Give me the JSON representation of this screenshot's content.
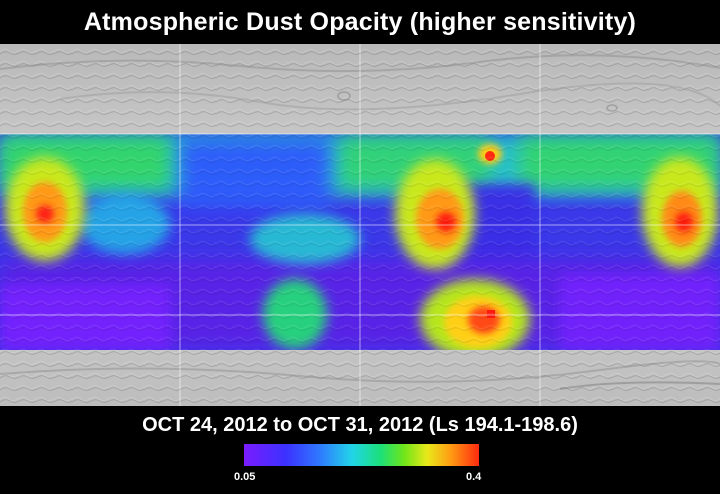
{
  "title": "Atmospheric Dust Opacity (higher sensitivity)",
  "date_range": "OCT 24, 2012 to OCT 31, 2012 (Ls 194.1-198.6)",
  "colorbar": {
    "min_label": "0.05",
    "max_label": "0.4",
    "colors": [
      "#7a1cff",
      "#3b32ff",
      "#2f78ff",
      "#22d5e8",
      "#1be07a",
      "#6ee51a",
      "#e8e81a",
      "#ff9b12",
      "#ff2a10"
    ]
  },
  "map": {
    "basemap": "grayscale-shaded-relief",
    "dust_hotspots": [
      {
        "name": "west-high",
        "intensity": 0.93
      },
      {
        "name": "central-high",
        "intensity": 0.96
      },
      {
        "name": "east-high",
        "intensity": 0.95
      },
      {
        "name": "south-central-high",
        "intensity": 0.97
      },
      {
        "name": "north-central-spot",
        "intensity": 0.75
      }
    ]
  }
}
